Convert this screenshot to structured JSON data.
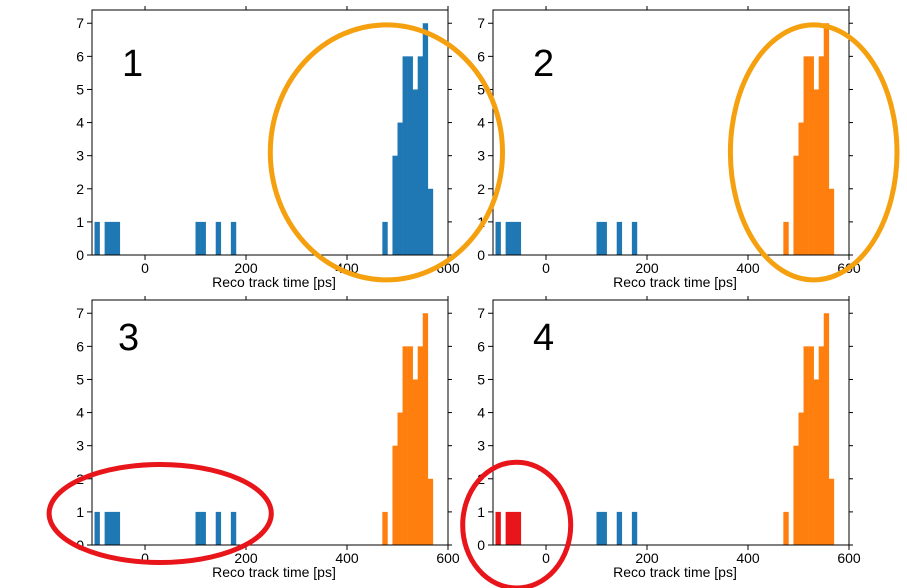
{
  "chart_data": [
    {
      "type": "bar",
      "panel_label": "1",
      "xlabel": "Reco track time [ps]",
      "ylabel": "",
      "xlim": [
        -105,
        600
      ],
      "ylim": [
        0,
        7.4
      ],
      "xticks": [
        0,
        200,
        400,
        600
      ],
      "yticks": [
        0,
        1,
        2,
        3,
        4,
        5,
        6,
        7
      ],
      "bin_width": 10,
      "series": [
        {
          "color": "#1f77b4",
          "bins": [
            [
              -100,
              1
            ],
            [
              -80,
              1
            ],
            [
              -70,
              1
            ],
            [
              -60,
              1
            ],
            [
              100,
              1
            ],
            [
              110,
              1
            ],
            [
              140,
              1
            ],
            [
              170,
              1
            ],
            [
              470,
              1
            ],
            [
              490,
              3
            ],
            [
              500,
              4
            ],
            [
              510,
              6
            ],
            [
              520,
              6
            ],
            [
              530,
              5
            ],
            [
              540,
              6
            ],
            [
              550,
              7
            ],
            [
              560,
              2
            ]
          ]
        }
      ],
      "highlight": {
        "shape": "ellipse",
        "color": "#f5a00f",
        "cx": 478,
        "cy": 3.1,
        "rx": 230,
        "ry": 3.85
      }
    },
    {
      "type": "bar",
      "panel_label": "2",
      "xlabel": "Reco track time [ps]",
      "ylabel": "",
      "xlim": [
        -105,
        600
      ],
      "ylim": [
        0,
        7.4
      ],
      "xticks": [
        0,
        200,
        400,
        600
      ],
      "yticks": [
        0,
        1,
        2,
        3,
        4,
        5,
        6,
        7
      ],
      "bin_width": 10,
      "series": [
        {
          "color": "#1f77b4",
          "bins": [
            [
              -100,
              1
            ],
            [
              -80,
              1
            ],
            [
              -70,
              1
            ],
            [
              -60,
              1
            ],
            [
              100,
              1
            ],
            [
              110,
              1
            ],
            [
              140,
              1
            ],
            [
              170,
              1
            ]
          ]
        },
        {
          "color": "#ff7f0e",
          "bins": [
            [
              470,
              1
            ],
            [
              490,
              3
            ],
            [
              500,
              4
            ],
            [
              510,
              6
            ],
            [
              520,
              6
            ],
            [
              530,
              5
            ],
            [
              540,
              6
            ],
            [
              550,
              7
            ],
            [
              560,
              2
            ]
          ]
        }
      ],
      "highlight": {
        "shape": "ellipse",
        "color": "#f5a00f",
        "cx": 530,
        "cy": 3.1,
        "rx": 165,
        "ry": 3.85
      }
    },
    {
      "type": "bar",
      "panel_label": "3",
      "xlabel": "Reco track time [ps]",
      "ylabel": "",
      "xlim": [
        -105,
        600
      ],
      "ylim": [
        0,
        7.4
      ],
      "xticks": [
        0,
        200,
        400,
        600
      ],
      "yticks": [
        0,
        1,
        2,
        3,
        4,
        5,
        6,
        7
      ],
      "bin_width": 10,
      "series": [
        {
          "color": "#1f77b4",
          "bins": [
            [
              -100,
              1
            ],
            [
              -80,
              1
            ],
            [
              -70,
              1
            ],
            [
              -60,
              1
            ],
            [
              100,
              1
            ],
            [
              110,
              1
            ],
            [
              140,
              1
            ],
            [
              170,
              1
            ]
          ]
        },
        {
          "color": "#ff7f0e",
          "bins": [
            [
              470,
              1
            ],
            [
              490,
              3
            ],
            [
              500,
              4
            ],
            [
              510,
              6
            ],
            [
              520,
              6
            ],
            [
              530,
              5
            ],
            [
              540,
              6
            ],
            [
              550,
              7
            ],
            [
              560,
              2
            ]
          ]
        }
      ],
      "highlight": {
        "shape": "ellipse",
        "color": "#e8151b",
        "cx": 30,
        "cy": 0.95,
        "rx": 220,
        "ry": 1.48
      }
    },
    {
      "type": "bar",
      "panel_label": "4",
      "xlabel": "Reco track time [ps]",
      "ylabel": "",
      "xlim": [
        -105,
        600
      ],
      "ylim": [
        0,
        7.4
      ],
      "xticks": [
        0,
        200,
        400,
        600
      ],
      "yticks": [
        0,
        1,
        2,
        3,
        4,
        5,
        6,
        7
      ],
      "bin_width": 10,
      "series": [
        {
          "color": "#e8151b",
          "bins": [
            [
              -100,
              1
            ],
            [
              -80,
              1
            ],
            [
              -70,
              1
            ],
            [
              -60,
              1
            ]
          ]
        },
        {
          "color": "#1f77b4",
          "bins": [
            [
              100,
              1
            ],
            [
              110,
              1
            ],
            [
              140,
              1
            ],
            [
              170,
              1
            ]
          ]
        },
        {
          "color": "#ff7f0e",
          "bins": [
            [
              470,
              1
            ],
            [
              490,
              3
            ],
            [
              500,
              4
            ],
            [
              510,
              6
            ],
            [
              520,
              6
            ],
            [
              530,
              5
            ],
            [
              540,
              6
            ],
            [
              550,
              7
            ],
            [
              560,
              2
            ]
          ]
        }
      ],
      "highlight": {
        "shape": "ellipse",
        "color": "#e8151b",
        "cx": -58,
        "cy": 0.6,
        "rx": 107,
        "ry": 1.9
      }
    }
  ]
}
